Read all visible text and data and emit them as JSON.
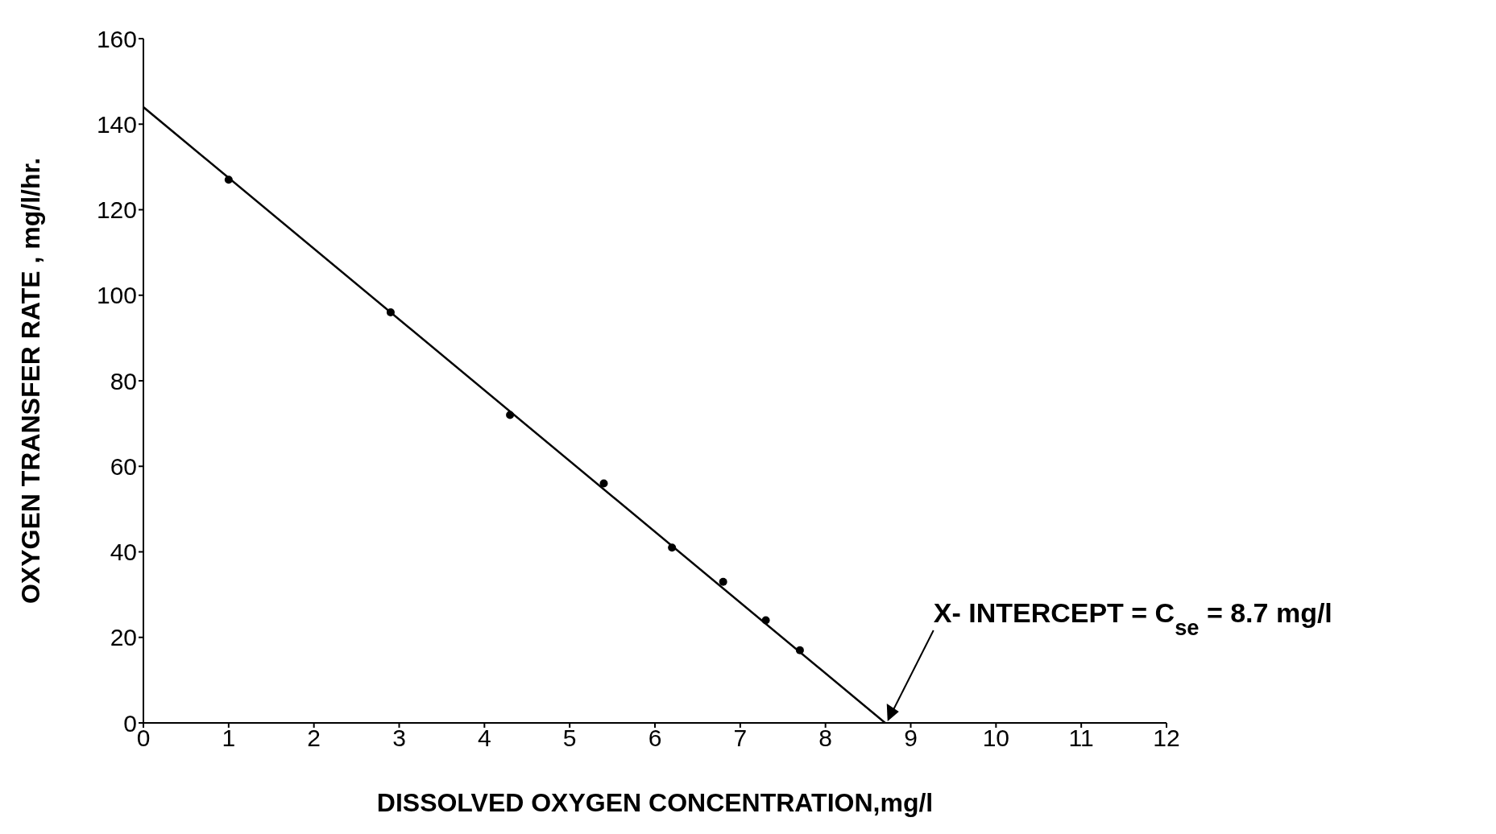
{
  "chart_data": {
    "type": "scatter",
    "xlabel": "DISSOLVED OXYGEN CONCENTRATION,mg/l",
    "ylabel": "OXYGEN TRANSFER RATE , mg/l/hr.",
    "series": [
      {
        "color": "#000000",
        "marker": "circle",
        "x": [
          1.0,
          2.9,
          4.3,
          5.4,
          6.2,
          6.8,
          7.3,
          7.7
        ],
        "values": [
          127,
          96,
          72,
          56,
          41,
          33,
          24,
          17
        ]
      },
      {
        "type": "line",
        "color": "#000000",
        "marker": "none",
        "x": [
          0,
          8.7
        ],
        "values": [
          144,
          0
        ]
      }
    ],
    "xlim": [
      0,
      12
    ],
    "xticks": [
      0,
      1,
      2,
      3,
      4,
      5,
      6,
      7,
      8,
      9,
      10,
      11,
      12
    ],
    "ylim": [
      0,
      160
    ],
    "yticks": [
      0,
      20,
      40,
      60,
      80,
      100,
      120,
      140,
      160
    ],
    "annotations": [
      "X- INTERCEPT = C$_{se}$ = 8.7 mg/l"
    ]
  }
}
